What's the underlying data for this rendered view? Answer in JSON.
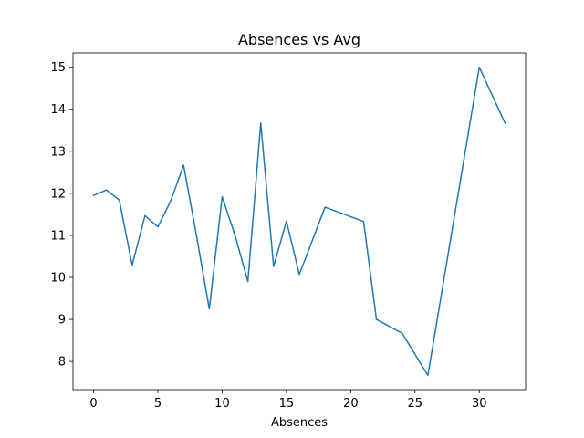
{
  "chart_data": {
    "type": "line",
    "title": "Absences vs Avg",
    "xlabel": "Absences",
    "ylabel": "",
    "xlim": [
      -1.6,
      33.6
    ],
    "ylim": [
      7.33,
      15.34
    ],
    "grid": false,
    "legend": "none",
    "x_ticks": [
      0,
      5,
      10,
      15,
      20,
      25,
      30
    ],
    "y_ticks": [
      8,
      9,
      10,
      11,
      12,
      13,
      14,
      15
    ],
    "series": [
      {
        "color": "#1f77b4",
        "x": [
          0,
          1,
          2,
          3,
          4,
          5,
          6,
          7,
          8,
          9,
          10,
          11,
          12,
          13,
          14,
          15,
          16,
          18,
          21,
          22,
          24,
          26,
          30,
          32
        ],
        "y": [
          11.95,
          12.08,
          11.84,
          10.29,
          11.47,
          11.2,
          11.82,
          12.67,
          11.0,
          9.25,
          11.92,
          11.0,
          9.9,
          13.67,
          10.26,
          11.34,
          10.07,
          11.67,
          11.33,
          9.0,
          8.67,
          7.67,
          15.0,
          13.67
        ]
      }
    ]
  }
}
